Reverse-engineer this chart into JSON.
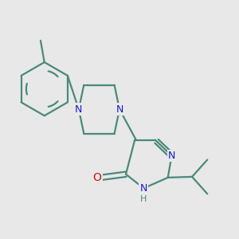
{
  "bg_color": "#e8e8e8",
  "bond_color": "#4a8a7a",
  "N_color": "#1a1acc",
  "O_color": "#cc1111",
  "line_width": 1.6,
  "font_size_atom": 9,
  "font_size_H": 8,
  "xlim": [
    0,
    10
  ],
  "ylim": [
    0,
    10
  ]
}
